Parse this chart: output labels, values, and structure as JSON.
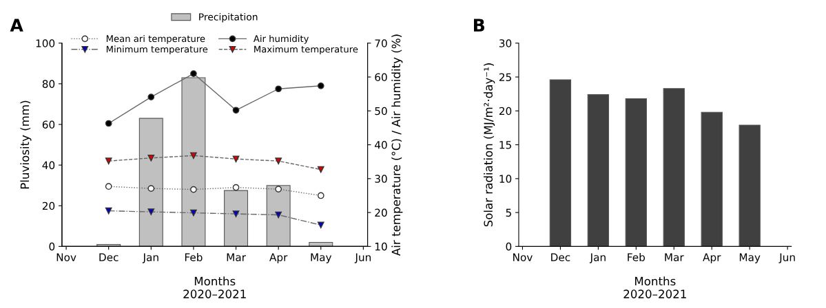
{
  "chart_data": [
    {
      "type": "bar",
      "title": "A",
      "xlabel": "Months\n2020–2021",
      "ylabel": "Pluviosity (mm)",
      "y2label": "Air temperature (°C) / Air humidity (%)",
      "categories": [
        "Nov",
        "Dec",
        "Jan",
        "Feb",
        "Mar",
        "Apr",
        "May",
        "Jun"
      ],
      "ylim": [
        0,
        100
      ],
      "yticks": [
        0,
        20,
        40,
        60,
        80,
        100
      ],
      "y2lim": [
        10,
        70
      ],
      "y2ticks": [
        10,
        20,
        30,
        40,
        50,
        60,
        70
      ],
      "legend": "top",
      "grid": false,
      "series": [
        {
          "name": "Precipitation",
          "color": "#c0c0c0",
          "values": [
            null,
            1,
            63,
            83,
            27.5,
            30,
            2,
            null
          ]
        },
        {
          "name": "Mean ari temperature",
          "type": "line",
          "axis": "y2",
          "color": "#ffffff",
          "marker": "circle",
          "line_style": "dotted",
          "values": [
            null,
            27.7,
            27.1,
            26.8,
            27.4,
            26.9,
            25.0,
            null
          ]
        },
        {
          "name": "Minimum temperature",
          "type": "line",
          "axis": "y2",
          "color": "#0000cc",
          "marker": "triangle",
          "line_style": "dashdot",
          "values": [
            null,
            20.5,
            20.2,
            19.9,
            19.6,
            19.3,
            16.3,
            null
          ]
        },
        {
          "name": "Air humidity",
          "type": "line",
          "axis": "y2",
          "color": "#000000",
          "marker": "circle",
          "line_style": "solid",
          "values": [
            null,
            46.3,
            54.1,
            61.0,
            50.2,
            56.5,
            57.4,
            null
          ]
        },
        {
          "name": "Maximum temperature",
          "type": "line",
          "axis": "y2",
          "color": "#dd0000",
          "marker": "triangle",
          "line_style": "dashed",
          "values": [
            null,
            35.2,
            36.1,
            36.8,
            35.8,
            35.2,
            32.7,
            null
          ]
        }
      ]
    },
    {
      "type": "bar",
      "title": "B",
      "xlabel": "Months\n2020–2021",
      "ylabel": "Solar radiation (MJ/m²·day⁻¹)",
      "categories": [
        "Nov",
        "Dec",
        "Jan",
        "Feb",
        "Mar",
        "Apr",
        "May",
        "Jun"
      ],
      "ylim": [
        0,
        30
      ],
      "yticks": [
        0,
        5,
        10,
        15,
        20,
        25,
        30
      ],
      "grid": false,
      "series": [
        {
          "color": "#404040",
          "values": [
            null,
            24.6,
            22.4,
            21.8,
            23.3,
            19.8,
            17.9,
            null
          ]
        }
      ]
    }
  ]
}
